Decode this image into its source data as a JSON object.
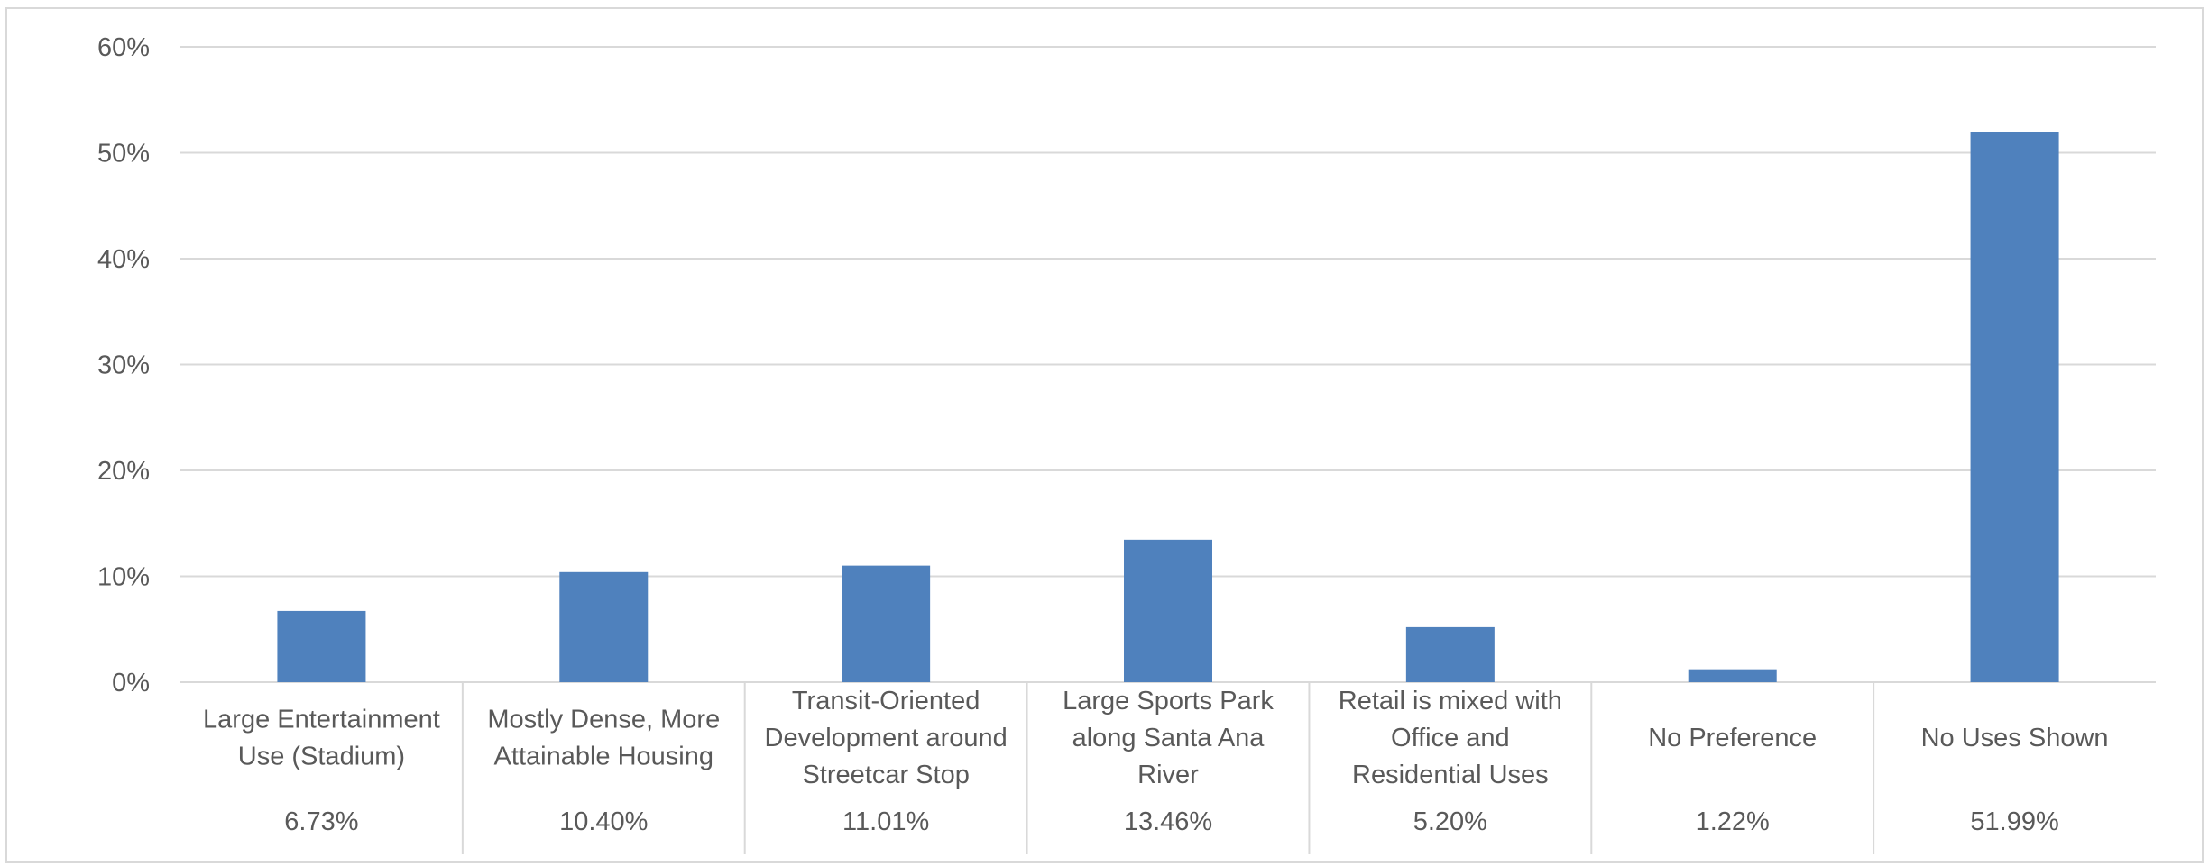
{
  "chart_data": {
    "type": "bar",
    "title": "",
    "xlabel": "",
    "ylabel": "",
    "ylim": [
      0,
      60
    ],
    "y_ticks": [
      "0%",
      "10%",
      "20%",
      "30%",
      "40%",
      "50%",
      "60%"
    ],
    "y_tick_values": [
      0,
      10,
      20,
      30,
      40,
      50,
      60
    ],
    "grid": true,
    "legend": "none",
    "bar_color": "#4f81bd",
    "categories": [
      [
        "Large Entertainment",
        "Use (Stadium)"
      ],
      [
        "Mostly Dense, More",
        "Attainable Housing"
      ],
      [
        "Transit-Oriented",
        "Development around",
        "Streetcar Stop"
      ],
      [
        "Large Sports Park",
        "along Santa Ana",
        "River"
      ],
      [
        "Retail is mixed with",
        "Office and",
        "Residential Uses"
      ],
      [
        "No Preference"
      ],
      [
        "No Uses Shown"
      ]
    ],
    "values": [
      6.73,
      10.4,
      11.01,
      13.46,
      5.2,
      1.22,
      51.99
    ],
    "value_labels": [
      "6.73%",
      "10.40%",
      "11.01%",
      "13.46%",
      "5.20%",
      "1.22%",
      "51.99%"
    ]
  }
}
